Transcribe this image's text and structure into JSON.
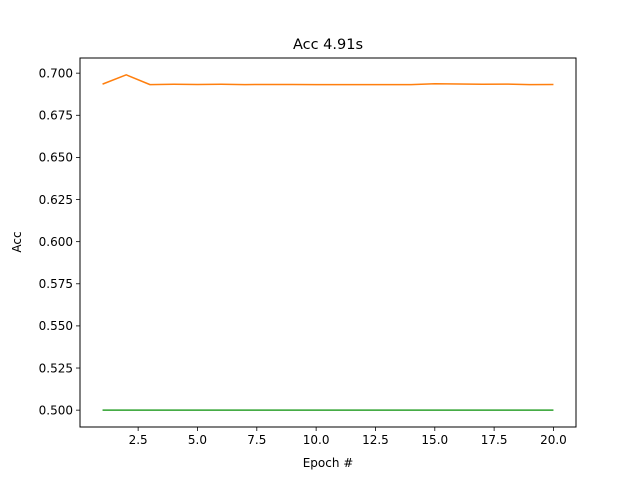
{
  "chart_data": {
    "type": "line",
    "title": "Acc 4.91s",
    "xlabel": "Epoch #",
    "ylabel": "Acc",
    "xlim": [
      0.05,
      20.95
    ],
    "ylim": [
      0.49,
      0.709
    ],
    "x_ticks": [
      2.5,
      5.0,
      7.5,
      10.0,
      12.5,
      15.0,
      17.5,
      20.0
    ],
    "x_tick_labels": [
      "2.5",
      "5.0",
      "7.5",
      "10.0",
      "12.5",
      "15.0",
      "17.5",
      "20.0"
    ],
    "y_ticks": [
      0.5,
      0.525,
      0.55,
      0.575,
      0.6,
      0.625,
      0.65,
      0.675,
      0.7
    ],
    "y_tick_labels": [
      "0.500",
      "0.525",
      "0.550",
      "0.575",
      "0.600",
      "0.625",
      "0.650",
      "0.675",
      "0.700"
    ],
    "grid": false,
    "legend": "none",
    "x": [
      1,
      2,
      3,
      4,
      5,
      6,
      7,
      8,
      9,
      10,
      11,
      12,
      13,
      14,
      15,
      16,
      17,
      18,
      19,
      20
    ],
    "series": [
      {
        "color": "#ff7f0e",
        "values": [
          0.6935,
          0.699,
          0.6932,
          0.6934,
          0.6933,
          0.6934,
          0.6932,
          0.6933,
          0.6933,
          0.6932,
          0.6932,
          0.6932,
          0.6932,
          0.6932,
          0.6937,
          0.6936,
          0.6934,
          0.6935,
          0.6932,
          0.6933
        ]
      },
      {
        "color": "#2ca02c",
        "values": [
          0.5,
          0.5,
          0.5,
          0.5,
          0.5,
          0.5,
          0.5,
          0.5,
          0.5,
          0.5,
          0.5,
          0.5,
          0.5,
          0.5,
          0.5,
          0.5,
          0.5,
          0.5,
          0.5,
          0.5
        ]
      }
    ]
  }
}
